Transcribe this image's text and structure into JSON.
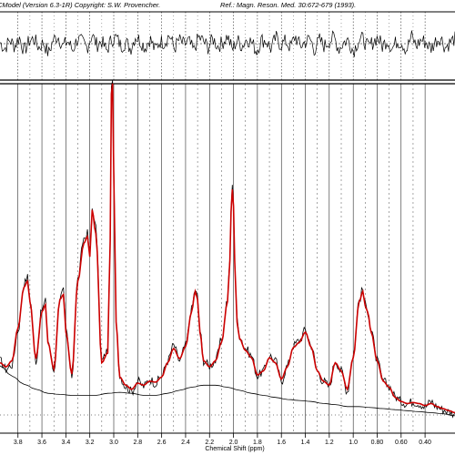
{
  "header": {
    "copyright": "CModel (Version 6.3-1R) Copyright: S.W. Provencher.",
    "reference": "Ref.: Magn. Reson. Med. 30:672-679 (1993)."
  },
  "chart_data": {
    "type": "line",
    "title": "",
    "xlabel": "Chemical Shift (ppm)",
    "ylabel": "",
    "xlim": [
      3.95,
      0.15
    ],
    "x_reversed": true,
    "grid": true,
    "tick_labels": [
      "3.8",
      "3.6",
      "3.4",
      "3.2",
      "3.0",
      "2.8",
      "2.6",
      "2.4",
      "2.2",
      "2.0",
      "1.8",
      "1.6",
      "1.4",
      "1.2",
      "1.0",
      "0.80",
      "0.60",
      "0.40"
    ],
    "tick_values": [
      3.8,
      3.6,
      3.4,
      3.2,
      3.0,
      2.8,
      2.6,
      2.4,
      2.2,
      2.0,
      1.8,
      1.6,
      1.4,
      1.2,
      1.0,
      0.8,
      0.6,
      0.4
    ],
    "series": [
      {
        "role": "data",
        "color": "#000000",
        "x": [
          3.95,
          3.9,
          3.85,
          3.8,
          3.75,
          3.72,
          3.7,
          3.65,
          3.6,
          3.57,
          3.55,
          3.5,
          3.45,
          3.42,
          3.4,
          3.35,
          3.3,
          3.25,
          3.22,
          3.2,
          3.18,
          3.15,
          3.1,
          3.05,
          3.03,
          3.02,
          3.01,
          3.0,
          2.98,
          2.95,
          2.9,
          2.85,
          2.8,
          2.75,
          2.7,
          2.65,
          2.6,
          2.55,
          2.5,
          2.45,
          2.4,
          2.35,
          2.32,
          2.3,
          2.28,
          2.25,
          2.2,
          2.15,
          2.1,
          2.05,
          2.03,
          2.02,
          2.01,
          2.0,
          1.99,
          1.97,
          1.95,
          1.9,
          1.85,
          1.8,
          1.75,
          1.7,
          1.65,
          1.6,
          1.55,
          1.5,
          1.45,
          1.4,
          1.35,
          1.3,
          1.25,
          1.2,
          1.15,
          1.1,
          1.05,
          1.0,
          0.95,
          0.92,
          0.9,
          0.88,
          0.85,
          0.8,
          0.75,
          0.7,
          0.65,
          0.6,
          0.55,
          0.5,
          0.45,
          0.4,
          0.35,
          0.3,
          0.25,
          0.2,
          0.15
        ],
        "values": [
          0.3,
          0.22,
          0.26,
          0.6,
          1.05,
          1.12,
          0.9,
          0.3,
          0.8,
          0.88,
          0.5,
          0.2,
          0.92,
          0.98,
          0.6,
          0.15,
          1.1,
          1.5,
          1.55,
          1.35,
          1.8,
          1.6,
          0.3,
          0.4,
          1.5,
          2.95,
          3.05,
          2.2,
          0.7,
          0.15,
          0.05,
          0.0,
          0.1,
          0.05,
          0.12,
          0.08,
          0.15,
          0.3,
          0.45,
          0.3,
          0.45,
          0.8,
          1.0,
          0.92,
          0.6,
          0.3,
          0.25,
          0.3,
          0.5,
          0.9,
          1.3,
          1.8,
          2.0,
          1.85,
          1.3,
          0.7,
          0.55,
          0.42,
          0.35,
          0.15,
          0.2,
          0.35,
          0.3,
          0.1,
          0.25,
          0.45,
          0.5,
          0.6,
          0.45,
          0.2,
          0.1,
          0.05,
          0.3,
          0.2,
          0.0,
          0.35,
          0.9,
          1.0,
          0.85,
          0.8,
          0.6,
          0.3,
          0.1,
          0.05,
          -0.05,
          -0.1,
          -0.12,
          -0.1,
          -0.12,
          -0.15,
          -0.1,
          -0.15,
          -0.18,
          -0.2,
          -0.22
        ]
      },
      {
        "role": "fit",
        "color": "#cc0000",
        "x": [
          3.95,
          3.9,
          3.85,
          3.8,
          3.75,
          3.72,
          3.7,
          3.65,
          3.6,
          3.57,
          3.55,
          3.5,
          3.45,
          3.42,
          3.4,
          3.35,
          3.3,
          3.25,
          3.22,
          3.2,
          3.18,
          3.15,
          3.1,
          3.05,
          3.03,
          3.02,
          3.01,
          3.0,
          2.98,
          2.95,
          2.9,
          2.85,
          2.8,
          2.75,
          2.7,
          2.65,
          2.6,
          2.55,
          2.5,
          2.45,
          2.4,
          2.35,
          2.32,
          2.3,
          2.28,
          2.25,
          2.2,
          2.15,
          2.1,
          2.05,
          2.03,
          2.02,
          2.01,
          2.0,
          1.99,
          1.97,
          1.95,
          1.9,
          1.85,
          1.8,
          1.75,
          1.7,
          1.65,
          1.6,
          1.55,
          1.5,
          1.45,
          1.4,
          1.35,
          1.3,
          1.25,
          1.2,
          1.15,
          1.1,
          1.05,
          1.0,
          0.95,
          0.92,
          0.9,
          0.88,
          0.85,
          0.8,
          0.75,
          0.7,
          0.65,
          0.6,
          0.55,
          0.5,
          0.45,
          0.4,
          0.35,
          0.3,
          0.25,
          0.2,
          0.15
        ],
        "values": [
          0.28,
          0.24,
          0.3,
          0.62,
          1.02,
          1.08,
          0.88,
          0.32,
          0.78,
          0.85,
          0.48,
          0.22,
          0.9,
          0.95,
          0.58,
          0.17,
          1.08,
          1.45,
          1.52,
          1.32,
          1.78,
          1.55,
          0.28,
          0.38,
          1.48,
          2.92,
          3.02,
          2.15,
          0.68,
          0.14,
          0.06,
          0.02,
          0.08,
          0.06,
          0.1,
          0.09,
          0.14,
          0.28,
          0.42,
          0.32,
          0.44,
          0.78,
          0.98,
          0.9,
          0.58,
          0.3,
          0.24,
          0.3,
          0.48,
          0.88,
          1.28,
          1.76,
          1.98,
          1.82,
          1.28,
          0.68,
          0.52,
          0.4,
          0.33,
          0.16,
          0.2,
          0.33,
          0.28,
          0.12,
          0.24,
          0.43,
          0.48,
          0.58,
          0.43,
          0.2,
          0.1,
          0.06,
          0.28,
          0.2,
          0.02,
          0.33,
          0.88,
          0.98,
          0.84,
          0.78,
          0.58,
          0.3,
          0.1,
          0.04,
          -0.06,
          -0.1,
          -0.12,
          -0.11,
          -0.12,
          -0.14,
          -0.12,
          -0.15,
          -0.17,
          -0.19,
          -0.21
        ]
      },
      {
        "role": "baseline",
        "color": "#000000",
        "x": [
          3.95,
          3.85,
          3.75,
          3.65,
          3.55,
          3.45,
          3.35,
          3.25,
          3.15,
          3.05,
          2.95,
          2.85,
          2.75,
          2.65,
          2.55,
          2.45,
          2.35,
          2.25,
          2.15,
          2.05,
          1.95,
          1.85,
          1.75,
          1.65,
          1.55,
          1.45,
          1.35,
          1.25,
          1.15,
          1.05,
          0.95,
          0.85,
          0.75,
          0.65,
          0.55,
          0.45,
          0.35,
          0.25,
          0.15
        ],
        "values": [
          0.25,
          0.15,
          0.07,
          0.02,
          -0.02,
          -0.03,
          -0.04,
          -0.04,
          -0.04,
          -0.02,
          -0.01,
          -0.02,
          -0.04,
          -0.04,
          -0.02,
          0.01,
          0.04,
          0.06,
          0.06,
          0.04,
          0.01,
          -0.02,
          -0.04,
          -0.06,
          -0.08,
          -0.09,
          -0.1,
          -0.12,
          -0.13,
          -0.15,
          -0.15,
          -0.16,
          -0.17,
          -0.18,
          -0.19,
          -0.2,
          -0.21,
          -0.22,
          -0.24
        ]
      }
    ],
    "residual_values": [
      0.1,
      -0.4,
      0.3,
      -0.2,
      0.5,
      -0.6,
      0.2,
      0.4,
      -0.3,
      0.1,
      -0.8,
      0.3,
      0.6,
      -0.2,
      0.2,
      -0.5,
      0.4,
      0.1,
      -0.3,
      0.7,
      -0.1,
      0.2,
      -0.6,
      0.3,
      0.5,
      -0.2,
      0.1,
      -0.4,
      0.6,
      0.2,
      -0.3,
      0.4,
      -0.5,
      0.2,
      0.1,
      0.7,
      -0.4,
      0.3,
      -0.1,
      0.2,
      -0.6,
      0.5,
      0.2,
      -0.3,
      0.4,
      -0.2,
      0.1,
      0.6,
      -0.5,
      0.3,
      -0.2,
      0.4,
      0.1,
      -0.6,
      0.3,
      0.2,
      -0.4,
      0.5,
      -0.1,
      0.2,
      -0.3,
      0.6,
      -0.2,
      0.1,
      0.4,
      -0.5,
      0.3,
      -0.2,
      0.2,
      0.5,
      -0.4,
      0.1,
      0.3,
      -0.6,
      0.2,
      0.4,
      -0.3,
      0.1,
      0.5,
      -0.2,
      0.3,
      -0.4,
      0.2,
      0.1,
      -0.5,
      0.6,
      -0.2,
      0.3,
      0.1,
      -0.4,
      0.2,
      0.5,
      -0.3,
      0.1,
      0.4
    ]
  }
}
